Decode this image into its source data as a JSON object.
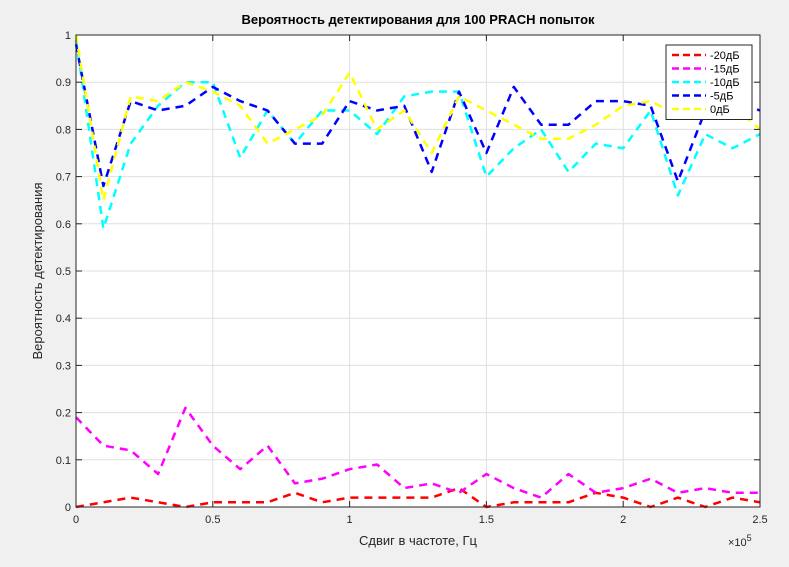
{
  "chart_data": {
    "type": "line",
    "title": "Вероятность детектирования для 100 PRACH попыток",
    "xlabel": "Сдвиг в частоте, Гц",
    "ylabel": "Вероятность детектирования",
    "x_exponent_label": "×10",
    "x_exponent_power": "5",
    "xlim": [
      0,
      250000
    ],
    "ylim": [
      0,
      1
    ],
    "xticks": [
      0,
      50000,
      100000,
      150000,
      200000,
      250000
    ],
    "xtick_labels": [
      "0",
      "0.5",
      "1",
      "1.5",
      "2",
      "2.5"
    ],
    "yticks": [
      0,
      0.1,
      0.2,
      0.3,
      0.4,
      0.5,
      0.6,
      0.7,
      0.8,
      0.9,
      1
    ],
    "ytick_labels": [
      "0",
      "0.1",
      "0.2",
      "0.3",
      "0.4",
      "0.5",
      "0.6",
      "0.7",
      "0.8",
      "0.9",
      "1"
    ],
    "grid": true,
    "legend_position": "top-right",
    "line_style": "dashed",
    "x": [
      0,
      10000,
      20000,
      30000,
      40000,
      50000,
      60000,
      70000,
      80000,
      90000,
      100000,
      110000,
      120000,
      130000,
      140000,
      150000,
      160000,
      170000,
      180000,
      190000,
      200000,
      210000,
      220000,
      230000,
      240000,
      250000
    ],
    "series": [
      {
        "name": "-20дБ",
        "color": "#ff0000",
        "values": [
          0,
          0.01,
          0.02,
          0.01,
          0,
          0.01,
          0.01,
          0.01,
          0.03,
          0.01,
          0.02,
          0.02,
          0.02,
          0.02,
          0.04,
          0,
          0.01,
          0.01,
          0.01,
          0.03,
          0.02,
          0,
          0.02,
          0,
          0.02,
          0.01
        ]
      },
      {
        "name": "-15дБ",
        "color": "#ff00ff",
        "values": [
          0.19,
          0.13,
          0.12,
          0.07,
          0.21,
          0.13,
          0.08,
          0.13,
          0.05,
          0.06,
          0.08,
          0.09,
          0.04,
          0.05,
          0.03,
          0.07,
          0.04,
          0.02,
          0.07,
          0.03,
          0.04,
          0.06,
          0.03,
          0.04,
          0.03,
          0.03
        ]
      },
      {
        "name": "-10дБ",
        "color": "#00ffff",
        "values": [
          0.99,
          0.59,
          0.77,
          0.85,
          0.9,
          0.9,
          0.74,
          0.84,
          0.77,
          0.84,
          0.84,
          0.79,
          0.87,
          0.88,
          0.88,
          0.7,
          0.76,
          0.8,
          0.71,
          0.77,
          0.76,
          0.84,
          0.66,
          0.79,
          0.76,
          0.79
        ]
      },
      {
        "name": "-5дБ",
        "color": "#0000ff",
        "values": [
          0.98,
          0.68,
          0.86,
          0.84,
          0.85,
          0.89,
          0.86,
          0.84,
          0.77,
          0.77,
          0.86,
          0.84,
          0.85,
          0.71,
          0.88,
          0.75,
          0.89,
          0.81,
          0.81,
          0.86,
          0.86,
          0.85,
          0.69,
          0.84,
          0.86,
          0.84
        ]
      },
      {
        "name": "0дБ",
        "color": "#ffff00",
        "values": [
          1.0,
          0.65,
          0.87,
          0.86,
          0.9,
          0.88,
          0.85,
          0.77,
          0.8,
          0.83,
          0.92,
          0.8,
          0.84,
          0.75,
          0.87,
          0.84,
          0.81,
          0.78,
          0.78,
          0.81,
          0.85,
          0.86,
          0.83,
          0.85,
          0.85,
          0.8
        ]
      }
    ]
  }
}
